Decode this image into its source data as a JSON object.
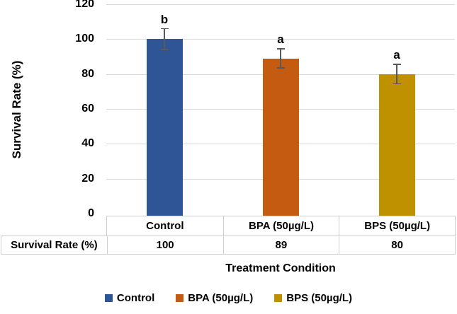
{
  "chart_data": {
    "type": "bar",
    "title": "",
    "xlabel": "Treatment Condition",
    "ylabel": "Survival Rate (%)",
    "categories": [
      "Control",
      "BPA (50µg/L)",
      "BPS (50µg/L)"
    ],
    "values": [
      100,
      89,
      80
    ],
    "error_bars": [
      6,
      5.5,
      5.5
    ],
    "significance_letters": [
      "b",
      "a",
      "a"
    ],
    "bar_colors": [
      "#2F5597",
      "#C55A11",
      "#BF9000"
    ],
    "ylim": [
      0,
      120
    ],
    "yticks": [
      0,
      20,
      40,
      60,
      80,
      100,
      120
    ],
    "grid": true,
    "legend_position": "bottom",
    "legend": [
      {
        "label": "Control",
        "color": "#2F5597"
      },
      {
        "label": "BPA (50µg/L)",
        "color": "#C55A11"
      },
      {
        "label": "BPS (50µg/L)",
        "color": "#BF9000"
      }
    ],
    "data_table": {
      "row_label": "Survival Rate (%)",
      "column_headers": [
        "Control",
        "BPA (50µg/L)",
        "BPS (50µg/L)"
      ],
      "row_values": [
        "100",
        "89",
        "80"
      ]
    }
  },
  "colors": {
    "gridline": "#D9D9D9",
    "table_border": "#CFCFCF",
    "error_bar": "#595959",
    "text": "#000000",
    "background": "#FFFFFF"
  }
}
